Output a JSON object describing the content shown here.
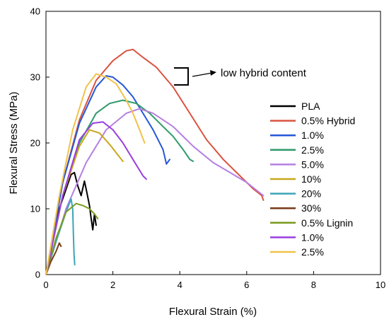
{
  "chart_data": {
    "type": "line",
    "title": "",
    "xlabel": "Flexural Strain (%)",
    "ylabel": "Flexural Stress (MPa)",
    "xlim": [
      0,
      10
    ],
    "ylim": [
      0,
      40
    ],
    "xticks": [
      "0",
      "2",
      "4",
      "6",
      "8",
      "10"
    ],
    "yticks": [
      "0",
      "10",
      "20",
      "30",
      "40"
    ],
    "grid": false,
    "legend_position": "right",
    "annotation": "low hybrid content",
    "series": [
      {
        "name": "PLA",
        "color": "#000000",
        "x": [
          0,
          0.4,
          0.75,
          0.85,
          0.95,
          1.05,
          1.15,
          1.2,
          1.3,
          1.35,
          1.4,
          1.45,
          1.5
        ],
        "y": [
          0,
          10,
          15.2,
          15.5,
          13.5,
          12,
          14.2,
          13,
          10.5,
          8.5,
          6.8,
          9.2,
          7.5
        ]
      },
      {
        "name": "0.5% Hybrid",
        "color": "#d9533f",
        "x": [
          0,
          0.5,
          1.0,
          1.5,
          2.0,
          2.4,
          2.6,
          2.9,
          3.3,
          3.8,
          4.3,
          4.8,
          5.3,
          5.8,
          6.2,
          6.45,
          6.5
        ],
        "y": [
          0,
          14,
          23.5,
          29.5,
          32.5,
          34,
          34.2,
          33,
          31.5,
          28.5,
          24.5,
          20.5,
          17.5,
          15,
          13,
          12,
          11.3
        ]
      },
      {
        "name": "1.0%",
        "color": "#2557d6",
        "x": [
          0,
          0.5,
          1.0,
          1.5,
          1.8,
          2.0,
          2.3,
          2.6,
          2.9,
          3.2,
          3.5,
          3.6,
          3.7
        ],
        "y": [
          0,
          14,
          23,
          28.5,
          30.2,
          30,
          28.8,
          27,
          24.5,
          22,
          19,
          16.8,
          17.5
        ]
      },
      {
        "name": "2.5%",
        "color": "#2f9a6a",
        "x": [
          0,
          0.5,
          1.0,
          1.5,
          1.9,
          2.3,
          2.7,
          3.1,
          3.5,
          3.8,
          4.1,
          4.3,
          4.4
        ],
        "y": [
          0,
          12,
          20,
          24.5,
          26,
          26.5,
          26,
          24.5,
          22.5,
          21,
          19,
          17.5,
          17.2
        ]
      },
      {
        "name": "5.0%",
        "color": "#b57fe0",
        "x": [
          0,
          0.6,
          1.2,
          1.8,
          2.4,
          2.8,
          3.2,
          3.8,
          4.4,
          5.0,
          5.5,
          6.0,
          6.3,
          6.5
        ],
        "y": [
          0,
          10,
          17,
          22,
          24.5,
          25.2,
          24.5,
          22.5,
          19.5,
          17,
          15.5,
          14,
          12.8,
          12
        ]
      },
      {
        "name": "10%",
        "color": "#c8a81a",
        "x": [
          0,
          0.5,
          1.0,
          1.3,
          1.6,
          1.9,
          2.1,
          2.3
        ],
        "y": [
          0,
          12,
          19.5,
          22,
          21.5,
          19.8,
          18.5,
          17.2
        ]
      },
      {
        "name": "20%",
        "color": "#3aa5b8",
        "x": [
          0,
          0.3,
          0.6,
          0.75,
          0.8,
          0.82,
          0.84,
          0.86
        ],
        "y": [
          0,
          5,
          9.5,
          11.5,
          10,
          6,
          3,
          1.5
        ]
      },
      {
        "name": "30%",
        "color": "#7a3a1a",
        "x": [
          0,
          0.15,
          0.3,
          0.4,
          0.45
        ],
        "y": [
          0,
          2,
          3.5,
          4.8,
          4.3
        ]
      },
      {
        "name": "0.5% Lignin",
        "color": "#7a9a1f",
        "x": [
          0,
          0.3,
          0.6,
          0.9,
          1.1,
          1.3,
          1.45,
          1.55
        ],
        "y": [
          0,
          5.5,
          9.5,
          10.8,
          10.5,
          10,
          9.2,
          8.5
        ]
      },
      {
        "name": "1.0%",
        "color": "#9b3fe0",
        "x": [
          0,
          0.5,
          1.0,
          1.4,
          1.7,
          2.0,
          2.3,
          2.6,
          2.9,
          3.0
        ],
        "y": [
          0,
          12,
          20.5,
          23,
          23.2,
          22,
          20,
          17.5,
          15,
          14.5
        ]
      },
      {
        "name": "2.5%",
        "color": "#f0c24a",
        "x": [
          0,
          0.4,
          0.8,
          1.2,
          1.5,
          1.8,
          2.1,
          2.4,
          2.6,
          2.8,
          2.95
        ],
        "y": [
          0,
          12,
          22,
          28.5,
          30.5,
          30,
          29,
          26.5,
          24.5,
          22,
          20
        ]
      }
    ]
  }
}
